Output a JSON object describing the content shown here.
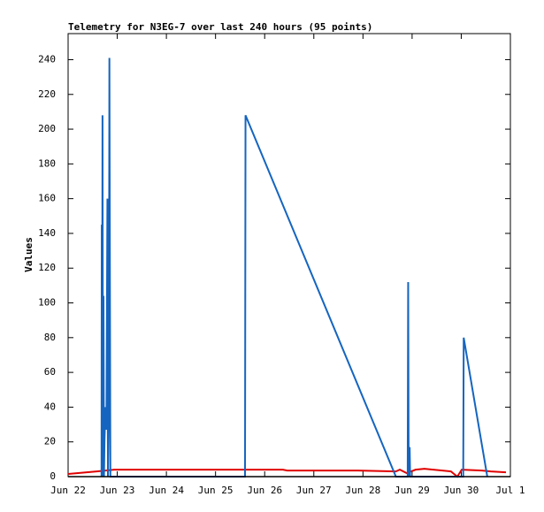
{
  "chart_data": {
    "type": "line",
    "title": "Telemetry for N3EG-7 over last 240 hours (95 points)",
    "y_label": "Values",
    "xlim": [
      0,
      9
    ],
    "xticks": [
      {
        "value": 0,
        "label": "Jun 22"
      },
      {
        "value": 1,
        "label": "Jun 23"
      },
      {
        "value": 2,
        "label": "Jun 24"
      },
      {
        "value": 3,
        "label": "Jun 25"
      },
      {
        "value": 4,
        "label": "Jun 26"
      },
      {
        "value": 5,
        "label": "Jun 27"
      },
      {
        "value": 6,
        "label": "Jun 28"
      },
      {
        "value": 7,
        "label": "Jun 29"
      },
      {
        "value": 8,
        "label": "Jun 30"
      },
      {
        "value": 9,
        "label": "Jul 1"
      }
    ],
    "ylim": [
      0,
      255
    ],
    "yticks": [
      0,
      20,
      40,
      60,
      80,
      100,
      120,
      140,
      160,
      180,
      200,
      220,
      240
    ],
    "series": [
      {
        "color": "#e00000",
        "x": [
          0.0,
          0.58,
          0.94,
          4.37,
          4.46,
          5.9,
          6.67,
          6.75,
          6.89,
          7.07,
          7.25,
          7.79,
          7.92,
          8.01,
          8.42,
          8.6,
          8.91
        ],
        "values": [
          1.5,
          3,
          4,
          4,
          3.5,
          3.5,
          3,
          4,
          2,
          4,
          4.5,
          3,
          0,
          4,
          3.5,
          3,
          2.5
        ]
      },
      {
        "color": "#1565c0",
        "x": [
          0.68,
          0.685,
          0.69,
          0.7,
          0.71,
          0.72,
          0.73,
          0.74,
          0.76,
          0.78,
          0.8,
          0.81,
          0.83,
          0.84,
          0.86,
          3.6,
          3.61,
          6.67,
          6.91,
          6.92,
          6.93,
          6.95,
          6.96,
          8.04,
          8.05,
          8.53
        ],
        "values": [
          0,
          145,
          0,
          208,
          0,
          104,
          0,
          20,
          40,
          27,
          160,
          0,
          45,
          241,
          0,
          0,
          208,
          0,
          0,
          112,
          0,
          17,
          0,
          0,
          80,
          0
        ]
      }
    ]
  }
}
